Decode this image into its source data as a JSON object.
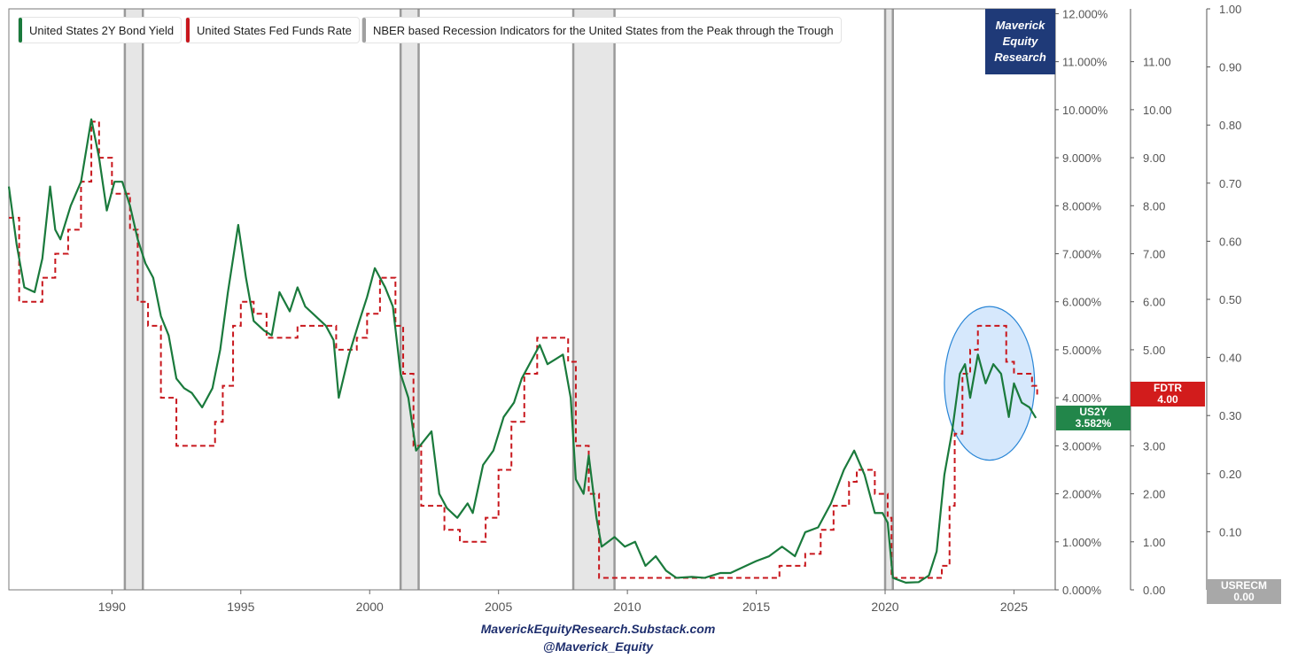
{
  "chart_data": {
    "type": "line",
    "title": "",
    "legend": [
      {
        "label": "United States 2Y Bond Yield",
        "color": "#1a7a3c"
      },
      {
        "label": "United States Fed Funds Rate",
        "color": "#c8171d"
      },
      {
        "label": "NBER based Recession Indicators for the United States from the Peak through the Trough",
        "color": "#a0a0a0"
      }
    ],
    "x_range": [
      1986,
      2026.6
    ],
    "x_ticks": [
      "1990",
      "1995",
      "2000",
      "2005",
      "2010",
      "2015",
      "2020",
      "2025"
    ],
    "y_left": {
      "name": "US2Y",
      "range": [
        0,
        12.1
      ],
      "ticks": [
        "0.000%",
        "1.000%",
        "2.000%",
        "3.000%",
        "4.000%",
        "5.000%",
        "6.000%",
        "7.000%",
        "8.000%",
        "9.000%",
        "10.000%",
        "11.000%",
        "12.000%"
      ]
    },
    "y_mid": {
      "name": "FDTR",
      "range": [
        0,
        12.1
      ],
      "ticks": [
        "0.00",
        "1.00",
        "2.00",
        "3.00",
        "4.00",
        "5.00",
        "6.00",
        "7.00",
        "8.00",
        "9.00",
        "10.00",
        "11.00"
      ]
    },
    "y_right": {
      "name": "USRECM",
      "range": [
        0,
        1.0
      ],
      "ticks": [
        "0.00",
        "0.10",
        "0.20",
        "0.30",
        "0.40",
        "0.50",
        "0.60",
        "0.70",
        "0.80",
        "0.90",
        "1.00"
      ]
    },
    "recessions": [
      [
        1990.5,
        1991.2
      ],
      [
        2001.2,
        2001.9
      ],
      [
        2007.9,
        2009.5
      ],
      [
        2020.0,
        2020.3
      ]
    ],
    "series": [
      {
        "name": "United States 2Y Bond Yield",
        "color": "#1a7a3c",
        "points": [
          [
            1986.0,
            8.4
          ],
          [
            1986.3,
            7.2
          ],
          [
            1986.6,
            6.3
          ],
          [
            1987.0,
            6.2
          ],
          [
            1987.3,
            6.9
          ],
          [
            1987.6,
            8.4
          ],
          [
            1987.8,
            7.5
          ],
          [
            1988.0,
            7.3
          ],
          [
            1988.4,
            8.0
          ],
          [
            1988.8,
            8.5
          ],
          [
            1989.2,
            9.8
          ],
          [
            1989.5,
            9.0
          ],
          [
            1989.8,
            7.9
          ],
          [
            1990.1,
            8.5
          ],
          [
            1990.4,
            8.5
          ],
          [
            1990.7,
            8.0
          ],
          [
            1991.0,
            7.3
          ],
          [
            1991.3,
            6.8
          ],
          [
            1991.6,
            6.5
          ],
          [
            1991.9,
            5.7
          ],
          [
            1992.2,
            5.3
          ],
          [
            1992.5,
            4.4
          ],
          [
            1992.8,
            4.2
          ],
          [
            1993.1,
            4.1
          ],
          [
            1993.5,
            3.8
          ],
          [
            1993.9,
            4.2
          ],
          [
            1994.2,
            5.0
          ],
          [
            1994.5,
            6.2
          ],
          [
            1994.9,
            7.6
          ],
          [
            1995.2,
            6.5
          ],
          [
            1995.5,
            5.6
          ],
          [
            1995.9,
            5.4
          ],
          [
            1996.2,
            5.3
          ],
          [
            1996.5,
            6.2
          ],
          [
            1996.9,
            5.8
          ],
          [
            1997.2,
            6.3
          ],
          [
            1997.5,
            5.9
          ],
          [
            1997.9,
            5.7
          ],
          [
            1998.3,
            5.5
          ],
          [
            1998.6,
            5.2
          ],
          [
            1998.8,
            4.0
          ],
          [
            1999.2,
            4.9
          ],
          [
            1999.6,
            5.6
          ],
          [
            1999.9,
            6.1
          ],
          [
            2000.2,
            6.7
          ],
          [
            2000.6,
            6.3
          ],
          [
            2000.9,
            5.9
          ],
          [
            2001.2,
            4.5
          ],
          [
            2001.5,
            4.0
          ],
          [
            2001.8,
            2.9
          ],
          [
            2002.1,
            3.1
          ],
          [
            2002.4,
            3.3
          ],
          [
            2002.7,
            2.0
          ],
          [
            2003.0,
            1.7
          ],
          [
            2003.4,
            1.5
          ],
          [
            2003.8,
            1.8
          ],
          [
            2004.0,
            1.6
          ],
          [
            2004.4,
            2.6
          ],
          [
            2004.8,
            2.9
          ],
          [
            2005.2,
            3.6
          ],
          [
            2005.6,
            3.9
          ],
          [
            2005.9,
            4.4
          ],
          [
            2006.3,
            4.8
          ],
          [
            2006.6,
            5.1
          ],
          [
            2006.9,
            4.7
          ],
          [
            2007.2,
            4.8
          ],
          [
            2007.5,
            4.9
          ],
          [
            2007.8,
            4.0
          ],
          [
            2008.0,
            2.3
          ],
          [
            2008.3,
            2.0
          ],
          [
            2008.5,
            2.8
          ],
          [
            2008.8,
            1.5
          ],
          [
            2009.0,
            0.9
          ],
          [
            2009.5,
            1.1
          ],
          [
            2009.9,
            0.9
          ],
          [
            2010.3,
            1.0
          ],
          [
            2010.7,
            0.5
          ],
          [
            2011.1,
            0.7
          ],
          [
            2011.5,
            0.4
          ],
          [
            2011.9,
            0.25
          ],
          [
            2012.5,
            0.27
          ],
          [
            2013.0,
            0.25
          ],
          [
            2013.6,
            0.35
          ],
          [
            2014.0,
            0.35
          ],
          [
            2014.6,
            0.5
          ],
          [
            2015.0,
            0.6
          ],
          [
            2015.5,
            0.7
          ],
          [
            2016.0,
            0.9
          ],
          [
            2016.5,
            0.7
          ],
          [
            2016.9,
            1.2
          ],
          [
            2017.4,
            1.3
          ],
          [
            2017.9,
            1.8
          ],
          [
            2018.4,
            2.5
          ],
          [
            2018.8,
            2.9
          ],
          [
            2019.2,
            2.4
          ],
          [
            2019.6,
            1.6
          ],
          [
            2019.9,
            1.6
          ],
          [
            2020.1,
            1.4
          ],
          [
            2020.3,
            0.25
          ],
          [
            2020.8,
            0.15
          ],
          [
            2021.3,
            0.16
          ],
          [
            2021.7,
            0.3
          ],
          [
            2022.0,
            0.8
          ],
          [
            2022.3,
            2.4
          ],
          [
            2022.6,
            3.3
          ],
          [
            2022.9,
            4.5
          ],
          [
            2023.1,
            4.7
          ],
          [
            2023.3,
            4.0
          ],
          [
            2023.6,
            4.9
          ],
          [
            2023.9,
            4.3
          ],
          [
            2024.2,
            4.7
          ],
          [
            2024.5,
            4.5
          ],
          [
            2024.8,
            3.6
          ],
          [
            2025.0,
            4.3
          ],
          [
            2025.3,
            3.9
          ],
          [
            2025.6,
            3.8
          ],
          [
            2025.85,
            3.58
          ]
        ]
      },
      {
        "name": "United States Fed Funds Rate",
        "color": "#c8171d",
        "points": [
          [
            1986.0,
            7.75
          ],
          [
            1986.4,
            6.0
          ],
          [
            1987.3,
            6.5
          ],
          [
            1987.8,
            7.0
          ],
          [
            1988.3,
            7.5
          ],
          [
            1988.8,
            8.5
          ],
          [
            1989.2,
            9.75
          ],
          [
            1989.5,
            9.0
          ],
          [
            1990.0,
            8.25
          ],
          [
            1990.7,
            7.5
          ],
          [
            1991.0,
            6.0
          ],
          [
            1991.4,
            5.5
          ],
          [
            1991.9,
            4.0
          ],
          [
            1992.5,
            3.0
          ],
          [
            1994.0,
            3.5
          ],
          [
            1994.3,
            4.25
          ],
          [
            1994.7,
            5.5
          ],
          [
            1995.0,
            6.0
          ],
          [
            1995.5,
            5.75
          ],
          [
            1996.0,
            5.25
          ],
          [
            1997.2,
            5.5
          ],
          [
            1998.7,
            5.0
          ],
          [
            1999.5,
            5.25
          ],
          [
            1999.9,
            5.75
          ],
          [
            2000.4,
            6.5
          ],
          [
            2001.0,
            5.5
          ],
          [
            2001.3,
            4.5
          ],
          [
            2001.7,
            3.0
          ],
          [
            2002.0,
            1.75
          ],
          [
            2002.9,
            1.25
          ],
          [
            2003.5,
            1.0
          ],
          [
            2004.5,
            1.5
          ],
          [
            2005.0,
            2.5
          ],
          [
            2005.5,
            3.5
          ],
          [
            2006.0,
            4.5
          ],
          [
            2006.5,
            5.25
          ],
          [
            2007.7,
            4.75
          ],
          [
            2008.0,
            3.0
          ],
          [
            2008.5,
            2.0
          ],
          [
            2008.9,
            0.25
          ],
          [
            2015.9,
            0.5
          ],
          [
            2016.9,
            0.75
          ],
          [
            2017.5,
            1.25
          ],
          [
            2018.0,
            1.75
          ],
          [
            2018.6,
            2.25
          ],
          [
            2018.9,
            2.5
          ],
          [
            2019.6,
            2.0
          ],
          [
            2020.1,
            1.5
          ],
          [
            2020.25,
            0.25
          ],
          [
            2022.2,
            0.5
          ],
          [
            2022.5,
            1.75
          ],
          [
            2022.7,
            3.25
          ],
          [
            2023.0,
            4.5
          ],
          [
            2023.3,
            5.0
          ],
          [
            2023.6,
            5.5
          ],
          [
            2024.7,
            4.75
          ],
          [
            2025.0,
            4.5
          ],
          [
            2025.7,
            4.25
          ],
          [
            2025.9,
            4.0
          ]
        ]
      }
    ],
    "annotations": [
      {
        "series": "US2Y",
        "label": "US2Y",
        "value": "3.582%",
        "color": "#22864a"
      },
      {
        "series": "FDTR",
        "label": "FDTR",
        "value": "4.00",
        "color": "#d21c1c"
      },
      {
        "series": "USRECM",
        "label": "USRECM",
        "value": "0.00",
        "color": "#a8a8a8"
      }
    ],
    "highlight": {
      "shape": "ellipse",
      "x_range": [
        2022.3,
        2025.8
      ],
      "y_range": [
        2.7,
        5.9
      ],
      "color": "#cfe4fb"
    }
  },
  "brand": {
    "line1": "Maverick",
    "line2": "Equity",
    "line3": "Research"
  },
  "footer": {
    "line1": "MaverickEquityResearch.Substack.com",
    "line2": "@Maverick_Equity"
  }
}
